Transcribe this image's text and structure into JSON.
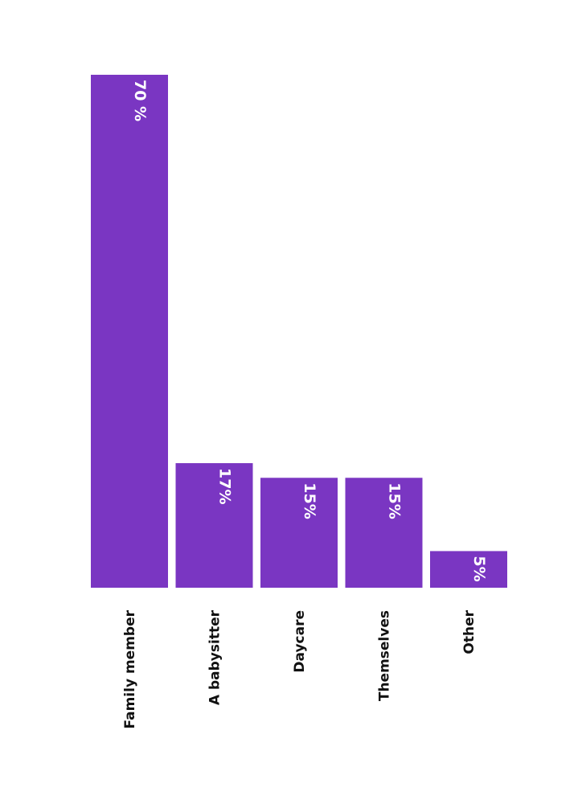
{
  "colors": {
    "bar": "#7a36c2",
    "background": "#ffffff",
    "bar_label": "#ffffff",
    "category_label": "#111111"
  },
  "chart_data": {
    "type": "bar",
    "orientation": "vertical",
    "title": "",
    "xlabel": "",
    "ylabel": "",
    "ylim": [
      0,
      70
    ],
    "grid": false,
    "legend": "none",
    "categories": [
      "Family member",
      "A babysitter",
      "Daycare",
      "Themselves",
      "Other"
    ],
    "values": [
      70,
      17,
      15,
      15,
      5
    ],
    "value_labels": [
      "70 %",
      "17%",
      "15%",
      "15%",
      "5%"
    ]
  }
}
